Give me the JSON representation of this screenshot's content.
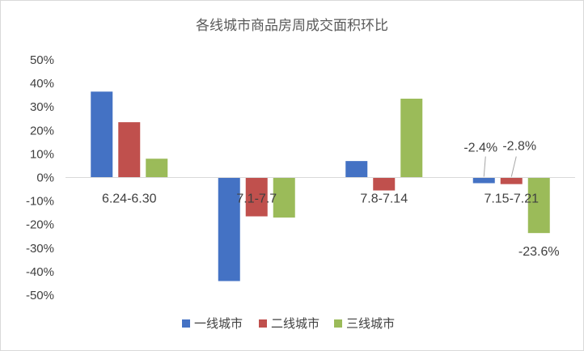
{
  "chart_data": {
    "type": "bar",
    "title": "各线城市商品房周成交面积环比",
    "categories": [
      "6.24-6.30",
      "7.1-7.7",
      "7.8-7.14",
      "7.15-7.21"
    ],
    "series": [
      {
        "name": "一线城市",
        "color": "#4472c4",
        "values": [
          36.5,
          -44.0,
          7.0,
          -2.4
        ]
      },
      {
        "name": "二线城市",
        "color": "#c0504d",
        "values": [
          23.5,
          -16.5,
          -5.5,
          -2.8
        ]
      },
      {
        "name": "三线城市",
        "color": "#9bbb59",
        "values": [
          8.0,
          -17.0,
          33.5,
          -23.6
        ]
      }
    ],
    "ylim": [
      -50,
      50
    ],
    "yticks": [
      50,
      40,
      30,
      20,
      10,
      0,
      -10,
      -20,
      -30,
      -40,
      -50
    ],
    "ytick_labels": [
      "50%",
      "40%",
      "30%",
      "20%",
      "10%",
      "0%",
      "-10%",
      "-20%",
      "-30%",
      "-40%",
      "-50%"
    ],
    "data_labels": [
      {
        "series": 0,
        "category": 3,
        "text": "-2.4%"
      },
      {
        "series": 1,
        "category": 3,
        "text": "-2.8%"
      },
      {
        "series": 2,
        "category": 3,
        "text": "-23.6%"
      }
    ],
    "grid": false,
    "legend": "bottom",
    "xlabel": "",
    "ylabel": ""
  }
}
